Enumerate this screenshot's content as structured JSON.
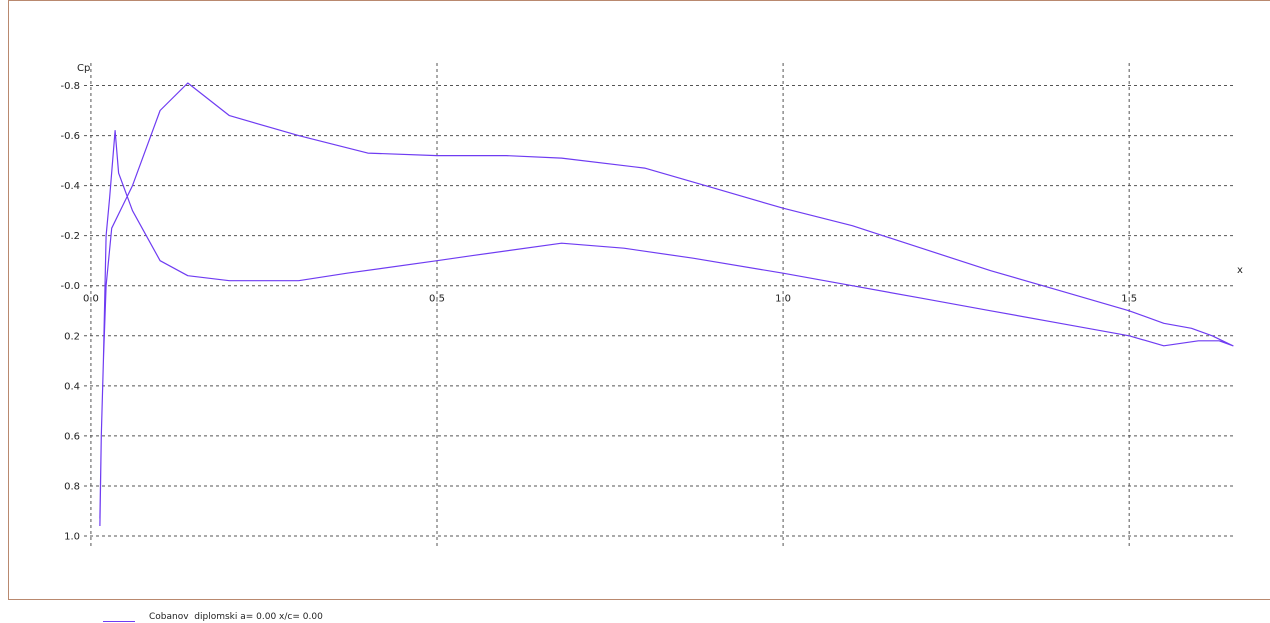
{
  "colors": {
    "curve": "#6f3cf2",
    "grid": "#555555",
    "frame": "#b9896f"
  },
  "chart_data": {
    "type": "line",
    "xlabel": "x",
    "ylabel": "Cp",
    "xlim": [
      -0.01,
      1.65
    ],
    "ylim": [
      1.04,
      -0.89
    ],
    "y_inverted": true,
    "grid": true,
    "legend_position": "bottom-left",
    "x_ticks": [
      {
        "value": 0.0,
        "label": "0.0"
      },
      {
        "value": 0.5,
        "label": "0.5"
      },
      {
        "value": 1.0,
        "label": "1.0"
      },
      {
        "value": 1.5,
        "label": "1.5"
      }
    ],
    "y_ticks": [
      {
        "value": -0.8,
        "label": "-0.8"
      },
      {
        "value": -0.6,
        "label": "-0.6"
      },
      {
        "value": -0.4,
        "label": "-0.4"
      },
      {
        "value": -0.2,
        "label": "-0.2"
      },
      {
        "value": 0.0,
        "label": "-0.0"
      },
      {
        "value": 0.2,
        "label": "0.2"
      },
      {
        "value": 0.4,
        "label": "0.4"
      },
      {
        "value": 0.6,
        "label": "0.6"
      },
      {
        "value": 0.8,
        "label": "0.8"
      },
      {
        "value": 1.0,
        "label": "1.0"
      }
    ],
    "series": [
      {
        "name": "Cobanov  diplomski a= 0.00 x/c= 0.00",
        "x": [
          0.013,
          0.015,
          0.018,
          0.022,
          0.027,
          0.035,
          0.04,
          0.06,
          0.1,
          0.14,
          0.2,
          0.24,
          0.3,
          0.37,
          0.5,
          0.55,
          0.68,
          0.77,
          0.87,
          1.0,
          1.1,
          1.2,
          1.3,
          1.4,
          1.5,
          1.55,
          1.6,
          1.63,
          1.65,
          1.62,
          1.59,
          1.55,
          1.5,
          1.4,
          1.3,
          1.2,
          1.1,
          1.0,
          0.9,
          0.8,
          0.68,
          0.6,
          0.5,
          0.4,
          0.3,
          0.2,
          0.14,
          0.1,
          0.06,
          0.03,
          0.022,
          0.018,
          0.015,
          0.013
        ],
        "y": [
          0.96,
          0.6,
          0.3,
          -0.2,
          -0.35,
          -0.62,
          -0.45,
          -0.3,
          -0.1,
          -0.04,
          -0.02,
          -0.02,
          -0.02,
          -0.05,
          -0.1,
          -0.12,
          -0.17,
          -0.15,
          -0.11,
          -0.05,
          0.0,
          0.05,
          0.1,
          0.15,
          0.2,
          0.24,
          0.22,
          0.22,
          0.24,
          0.2,
          0.17,
          0.15,
          0.1,
          0.02,
          -0.06,
          -0.15,
          -0.24,
          -0.31,
          -0.39,
          -0.47,
          -0.51,
          -0.52,
          -0.52,
          -0.53,
          -0.6,
          -0.68,
          -0.81,
          -0.7,
          -0.4,
          -0.23,
          0.0,
          0.3,
          0.6,
          0.93
        ]
      }
    ]
  }
}
